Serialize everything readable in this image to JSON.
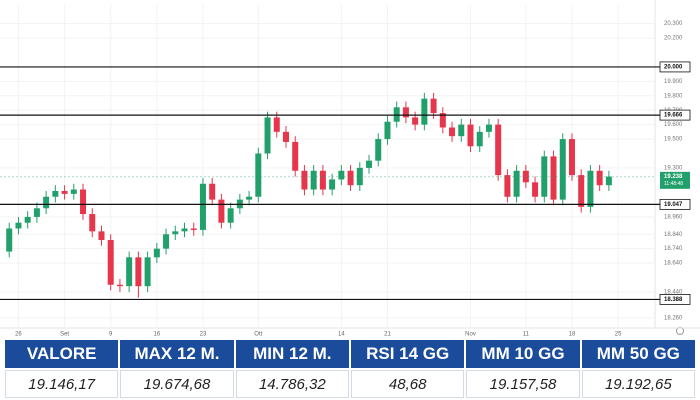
{
  "chart_data": {
    "type": "candlestick",
    "open": [
      18.72,
      18.88,
      18.92,
      18.96,
      19.02,
      19.1,
      19.14,
      19.12,
      19.15,
      18.98,
      18.86,
      18.8,
      18.49,
      18.48,
      18.68,
      18.48,
      18.68,
      18.74,
      18.84,
      18.86,
      18.88,
      18.87,
      19.19,
      19.08,
      18.92,
      19.02,
      19.08,
      19.1,
      19.4,
      19.65,
      19.55,
      19.48,
      19.28,
      19.15,
      19.28,
      19.15,
      19.22,
      19.28,
      19.18,
      19.3,
      19.35,
      19.5,
      19.62,
      19.72,
      19.65,
      19.6,
      19.78,
      19.68,
      19.58,
      19.52,
      19.6,
      19.45,
      19.55,
      19.6,
      19.25,
      19.1,
      19.28,
      19.2,
      19.1,
      19.38,
      19.08,
      19.5,
      19.25,
      19.03,
      19.28,
      19.18
    ],
    "high": [
      18.92,
      18.96,
      19.0,
      19.06,
      19.14,
      19.18,
      19.18,
      19.19,
      19.19,
      19.02,
      18.9,
      18.84,
      18.53,
      18.72,
      18.72,
      18.72,
      18.78,
      18.88,
      18.9,
      18.92,
      18.92,
      19.23,
      19.23,
      19.12,
      19.06,
      19.12,
      19.14,
      19.44,
      19.69,
      19.69,
      19.59,
      19.52,
      19.32,
      19.32,
      19.32,
      19.26,
      19.32,
      19.32,
      19.34,
      19.39,
      19.54,
      19.66,
      19.76,
      19.76,
      19.69,
      19.82,
      19.82,
      19.72,
      19.62,
      19.64,
      19.64,
      19.59,
      19.64,
      19.64,
      19.29,
      19.32,
      19.32,
      19.24,
      19.42,
      19.42,
      19.54,
      19.54,
      19.29,
      19.32,
      19.32,
      19.28
    ],
    "low": [
      18.68,
      18.84,
      18.88,
      18.92,
      18.98,
      19.06,
      19.08,
      19.08,
      18.94,
      18.82,
      18.76,
      18.45,
      18.44,
      18.44,
      18.4,
      18.44,
      18.64,
      18.7,
      18.8,
      18.82,
      18.83,
      18.83,
      19.04,
      18.88,
      18.88,
      18.98,
      19.04,
      19.06,
      19.36,
      19.51,
      19.44,
      19.24,
      19.11,
      19.11,
      19.11,
      19.11,
      19.18,
      19.14,
      19.14,
      19.26,
      19.31,
      19.46,
      19.58,
      19.61,
      19.56,
      19.56,
      19.64,
      19.54,
      19.48,
      19.48,
      19.41,
      19.41,
      19.51,
      19.21,
      19.06,
      19.06,
      19.16,
      19.06,
      19.06,
      19.04,
      19.04,
      19.21,
      18.99,
      18.99,
      19.14,
      19.14
    ],
    "close": [
      18.88,
      18.92,
      18.96,
      19.02,
      19.1,
      19.14,
      19.12,
      19.15,
      18.98,
      18.86,
      18.8,
      18.49,
      18.48,
      18.68,
      18.48,
      18.68,
      18.74,
      18.84,
      18.86,
      18.88,
      18.87,
      19.19,
      19.08,
      18.92,
      19.02,
      19.08,
      19.1,
      19.4,
      19.65,
      19.55,
      19.48,
      19.28,
      19.15,
      19.28,
      19.15,
      19.22,
      19.28,
      19.18,
      19.3,
      19.35,
      19.5,
      19.62,
      19.72,
      19.65,
      19.6,
      19.78,
      19.68,
      19.58,
      19.52,
      19.6,
      19.45,
      19.55,
      19.6,
      19.25,
      19.1,
      19.28,
      19.2,
      19.1,
      19.38,
      19.08,
      19.5,
      19.25,
      19.03,
      19.28,
      19.18,
      19.24
    ],
    "up_color": "#22a06b",
    "down_color": "#e5364c",
    "xlim": [
      -1,
      70
    ],
    "xticks": [
      {
        "value": 1,
        "label": "26"
      },
      {
        "value": 6,
        "label": "Set"
      },
      {
        "value": 11,
        "label": "9"
      },
      {
        "value": 16,
        "label": "16"
      },
      {
        "value": 21,
        "label": "23"
      },
      {
        "value": 27,
        "label": "Ott"
      },
      {
        "value": 36,
        "label": "14"
      },
      {
        "value": 41,
        "label": "21"
      },
      {
        "value": 50,
        "label": "Nov"
      },
      {
        "value": 56,
        "label": "11"
      },
      {
        "value": 61,
        "label": "18"
      },
      {
        "value": 66,
        "label": "25"
      }
    ],
    "ylim": [
      18.19,
      20.36
    ],
    "yticks": [
      {
        "value": 20.3,
        "label": "20.300"
      },
      {
        "value": 20.2,
        "label": "20.200"
      },
      {
        "value": 19.9,
        "label": "19.900"
      },
      {
        "value": 19.8,
        "label": "19.800"
      },
      {
        "value": 19.7,
        "label": "19.700"
      },
      {
        "value": 19.6,
        "label": "19.600"
      },
      {
        "value": 19.5,
        "label": "19.500"
      },
      {
        "value": 19.3,
        "label": "19.300"
      },
      {
        "value": 18.96,
        "label": "18.960"
      },
      {
        "value": 18.84,
        "label": "18.840"
      },
      {
        "value": 18.74,
        "label": "18.740"
      },
      {
        "value": 18.64,
        "label": "18.640"
      },
      {
        "value": 18.44,
        "label": "18.440"
      },
      {
        "value": 18.26,
        "label": "18.260"
      }
    ],
    "grid": true,
    "reference_lines": [
      {
        "value": 20.0,
        "label": "20.000"
      },
      {
        "value": 19.666,
        "label": "19.666"
      },
      {
        "value": 19.047,
        "label": "19.047"
      },
      {
        "value": 18.388,
        "label": "18.388"
      }
    ],
    "last_price": {
      "value": 19.238,
      "label": "19.238",
      "countdown": "11:48:48"
    }
  },
  "table": {
    "headers": [
      "VALORE",
      "MAX 12 M.",
      "MIN 12 M.",
      "RSI 14 GG",
      "MM 10 GG",
      "MM 50 GG"
    ],
    "rows": [
      [
        "19.146,17",
        "19.674,68",
        "14.786,32",
        "48,68",
        "19.157,58",
        "19.192,65"
      ]
    ]
  }
}
